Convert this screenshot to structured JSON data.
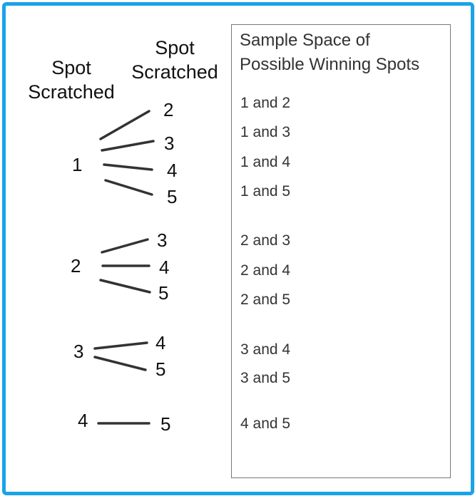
{
  "headers": {
    "first_line1": "Spot",
    "first_line2": "Scratched",
    "second_line1": "Spot",
    "second_line2": "Scratched"
  },
  "tree": {
    "first_spots": [
      "1",
      "2",
      "3",
      "4"
    ],
    "branches": [
      [
        "2",
        "3",
        "4",
        "5"
      ],
      [
        "3",
        "4",
        "5"
      ],
      [
        "4",
        "5"
      ],
      [
        "5"
      ]
    ]
  },
  "sample_space": {
    "title_line1": "Sample Space of",
    "title_line2": "Possible Winning Spots",
    "outcomes": [
      "1 and 2",
      "1 and 3",
      "1 and 4",
      "1 and 5",
      "2 and 3",
      "2 and 4",
      "2 and 5",
      "3 and 4",
      "3 and 5",
      "4 and 5"
    ]
  },
  "colors": {
    "border": "#1aa3e6",
    "line": "#333333"
  }
}
